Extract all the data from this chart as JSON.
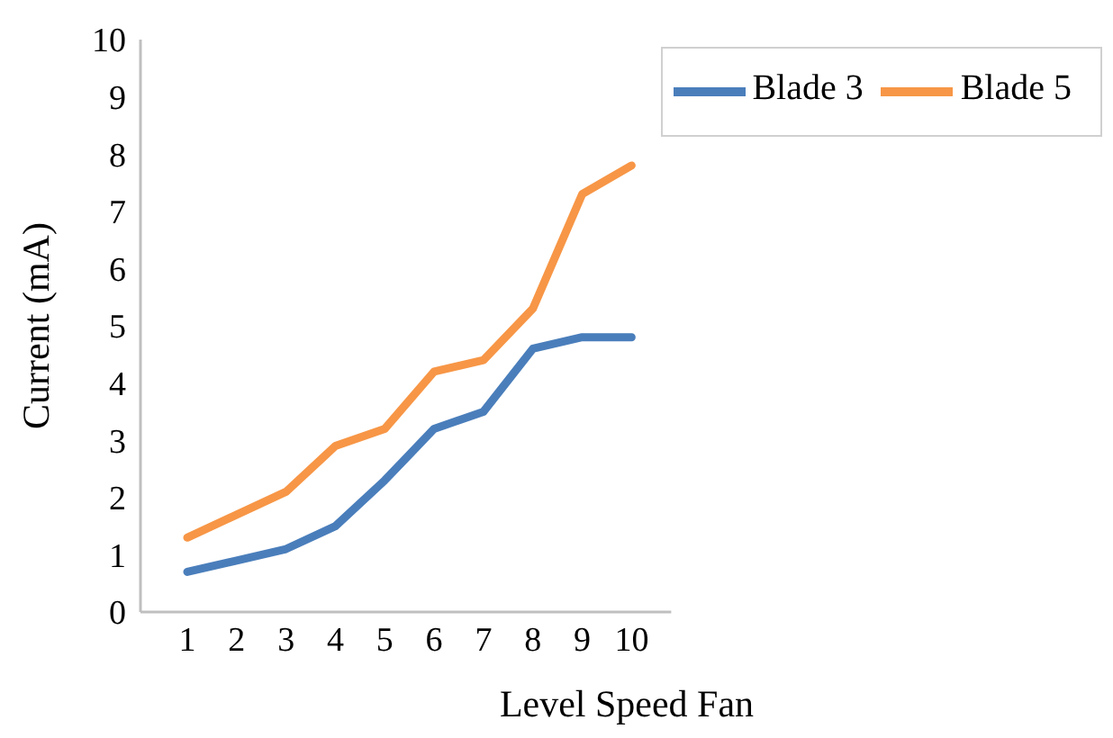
{
  "chart_data": {
    "type": "line",
    "xlabel": "Level Speed Fan",
    "ylabel": "Current (mA)",
    "categories": [
      "1",
      "2",
      "3",
      "4",
      "5",
      "6",
      "7",
      "8",
      "9",
      "10"
    ],
    "series": [
      {
        "name": "Blade 3",
        "color": "#4a7ebb",
        "values": [
          0.7,
          0.9,
          1.1,
          1.5,
          2.3,
          3.2,
          3.5,
          4.6,
          4.8,
          4.8
        ]
      },
      {
        "name": "Blade 5",
        "color": "#f79646",
        "values": [
          1.3,
          1.7,
          2.1,
          2.9,
          3.2,
          4.2,
          4.4,
          5.3,
          7.3,
          7.8
        ]
      }
    ],
    "ylim": [
      0,
      10
    ],
    "yticks": [
      0,
      1,
      2,
      3,
      4,
      5,
      6,
      7,
      8,
      9,
      10
    ],
    "grid": false,
    "legend": "top right",
    "marker": "none",
    "line_style": "solid"
  }
}
